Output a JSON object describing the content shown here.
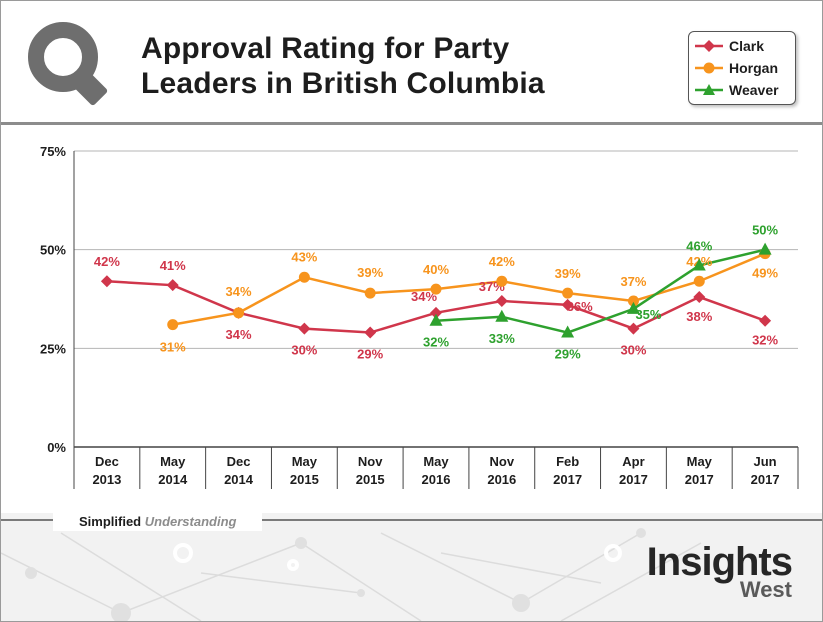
{
  "header": {
    "title_line1": "Approval Rating for Party",
    "title_line2": "Leaders in British Columbia"
  },
  "legend": {
    "placement": "top-right",
    "items": [
      {
        "label": "Clark",
        "color": "#d0364b",
        "marker": "diamond"
      },
      {
        "label": "Horgan",
        "color": "#f7941d",
        "marker": "circle"
      },
      {
        "label": "Weaver",
        "color": "#2ea12e",
        "marker": "triangle"
      }
    ]
  },
  "footer": {
    "tagline_bold": "Simplified",
    "tagline_italic": "Understanding",
    "brand_main": "Insights",
    "brand_sub": "West"
  },
  "chart_data": {
    "type": "line",
    "title": "Approval Rating for Party Leaders in British Columbia",
    "xlabel": "",
    "ylabel": "",
    "ylim": [
      0,
      75
    ],
    "yticks": [
      0,
      25,
      50,
      75
    ],
    "ytick_labels": [
      "0%",
      "25%",
      "50%",
      "75%"
    ],
    "grid": true,
    "categories": [
      [
        "Dec",
        "2013"
      ],
      [
        "May",
        "2014"
      ],
      [
        "Dec",
        "2014"
      ],
      [
        "May",
        "2015"
      ],
      [
        "Nov",
        "2015"
      ],
      [
        "May",
        "2016"
      ],
      [
        "Nov",
        "2016"
      ],
      [
        "Feb",
        "2017"
      ],
      [
        "Apr",
        "2017"
      ],
      [
        "May",
        "2017"
      ],
      [
        "Jun",
        "2017"
      ]
    ],
    "series": [
      {
        "name": "Clark",
        "color": "#d0364b",
        "marker": "diamond",
        "values": [
          42,
          41,
          34,
          30,
          29,
          34,
          37,
          36,
          30,
          38,
          32
        ],
        "labels": [
          "42%",
          "41%",
          "34%",
          "30%",
          "29%",
          "34%",
          "37%",
          "36%",
          "30%",
          "38%",
          "32%"
        ]
      },
      {
        "name": "Horgan",
        "color": "#f7941d",
        "marker": "circle",
        "values": [
          null,
          31,
          34,
          43,
          39,
          40,
          42,
          39,
          37,
          42,
          49
        ],
        "labels": [
          null,
          "31%",
          "34%",
          "43%",
          "39%",
          "40%",
          "42%",
          "39%",
          "37%",
          "42%",
          "49%"
        ]
      },
      {
        "name": "Weaver",
        "color": "#2ea12e",
        "marker": "triangle",
        "values": [
          null,
          null,
          null,
          null,
          null,
          32,
          33,
          29,
          35,
          46,
          50
        ],
        "labels": [
          null,
          null,
          null,
          null,
          null,
          "32%",
          "33%",
          "29%",
          "35%",
          "46%",
          "50%"
        ]
      }
    ]
  }
}
